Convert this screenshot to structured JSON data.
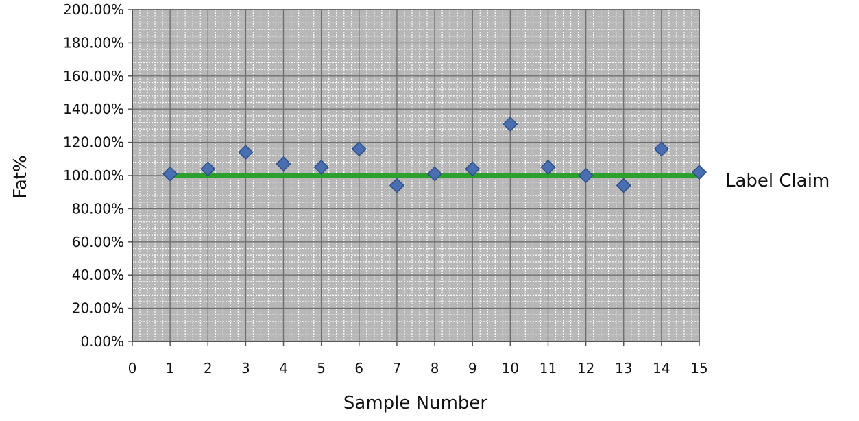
{
  "chart_data": {
    "type": "scatter",
    "title": "",
    "xlabel": "Sample Number",
    "ylabel": "Fat%",
    "xlim": [
      0,
      15
    ],
    "ylim": [
      0,
      200
    ],
    "x_ticks": [
      "0",
      "1",
      "2",
      "3",
      "4",
      "5",
      "6",
      "7",
      "8",
      "9",
      "10",
      "11",
      "12",
      "13",
      "14",
      "15"
    ],
    "y_ticks": [
      "0.00%",
      "20.00%",
      "40.00%",
      "60.00%",
      "80.00%",
      "100.00%",
      "120.00%",
      "140.00%",
      "160.00%",
      "180.00%",
      "200.00%"
    ],
    "grid": true,
    "series": [
      {
        "type": "scatter",
        "marker": "diamond",
        "color": "#4a6fb0",
        "points": [
          {
            "x": 1,
            "y": 101
          },
          {
            "x": 2,
            "y": 104
          },
          {
            "x": 3,
            "y": 114
          },
          {
            "x": 4,
            "y": 107
          },
          {
            "x": 5,
            "y": 105
          },
          {
            "x": 6,
            "y": 116
          },
          {
            "x": 7,
            "y": 94
          },
          {
            "x": 8,
            "y": 101
          },
          {
            "x": 9,
            "y": 104
          },
          {
            "x": 10,
            "y": 131
          },
          {
            "x": 11,
            "y": 105
          },
          {
            "x": 12,
            "y": 100
          },
          {
            "x": 13,
            "y": 94
          },
          {
            "x": 14,
            "y": 116
          },
          {
            "x": 15,
            "y": 102
          }
        ]
      },
      {
        "type": "line",
        "name": "Label Claim",
        "color": "#2ca02c",
        "points": [
          {
            "x": 1,
            "y": 100
          },
          {
            "x": 2,
            "y": 100
          },
          {
            "x": 3,
            "y": 100
          },
          {
            "x": 4,
            "y": 100
          },
          {
            "x": 5,
            "y": 100
          },
          {
            "x": 6,
            "y": 100
          },
          {
            "x": 7,
            "y": 100
          },
          {
            "x": 8,
            "y": 100
          },
          {
            "x": 9,
            "y": 100
          },
          {
            "x": 10,
            "y": 100
          },
          {
            "x": 11,
            "y": 100
          },
          {
            "x": 12,
            "y": 100
          },
          {
            "x": 13,
            "y": 100
          },
          {
            "x": 14,
            "y": 100
          },
          {
            "x": 15,
            "y": 100
          }
        ]
      }
    ],
    "annotations": [
      "Label Claim"
    ]
  }
}
